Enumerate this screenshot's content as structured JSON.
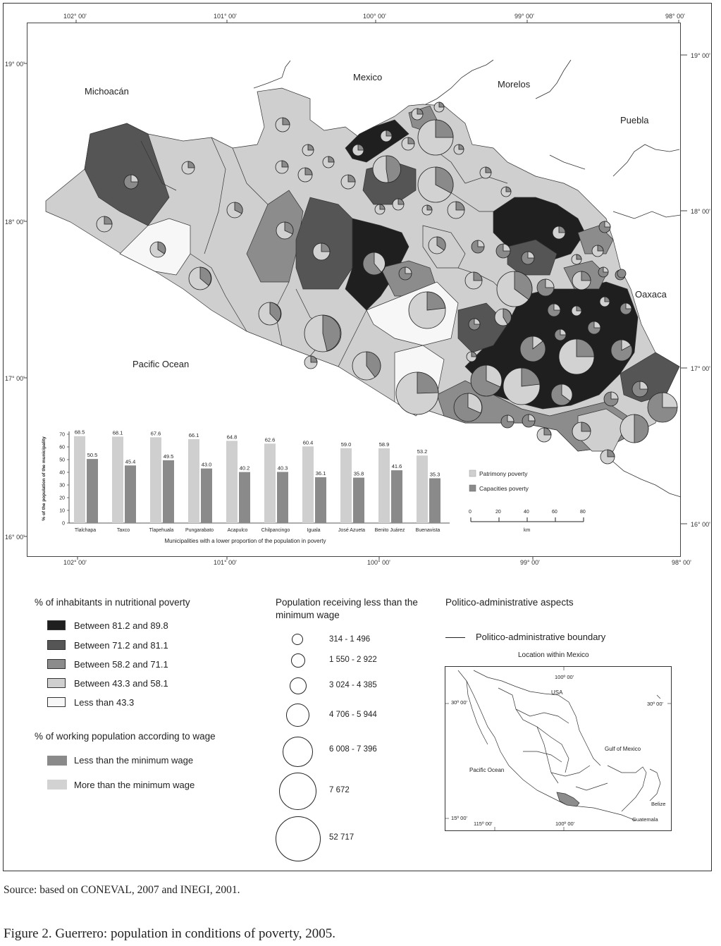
{
  "coords": {
    "top": [
      "102° 00'",
      "101° 00'",
      "100° 00'",
      "99° 00'",
      "98° 00'"
    ],
    "bottom": [
      "102° 00'",
      "101° 00'",
      "100° 00'",
      "99° 00'",
      "98° 00'"
    ],
    "left": [
      "19° 00'",
      "18° 00'",
      "17° 00'",
      "16° 00'"
    ],
    "right": [
      "19° 00'",
      "18° 00'",
      "17° 00'",
      "16° 00'"
    ]
  },
  "places": {
    "michoacan": "Michoacán",
    "mexico": "Mexico",
    "morelos": "Morelos",
    "puebla": "Puebla",
    "oaxaca": "Oaxaca",
    "pacific": "Pacific Ocean"
  },
  "chart_data": {
    "type": "bar",
    "categories": [
      "Tlalchapa",
      "Taxco",
      "Tlapehuala",
      "Pungarabato",
      "Acapulco",
      "Chilpancingo",
      "Iguala",
      "José Azueta",
      "Benito Juárez",
      "Buenavista"
    ],
    "series": [
      {
        "name": "Patrimony poverty",
        "values": [
          68.5,
          68.1,
          67.6,
          66.1,
          64.8,
          62.6,
          60.4,
          59.0,
          58.9,
          53.2
        ],
        "color": "#cfcfcf"
      },
      {
        "name": "Capacities poverty",
        "values": [
          50.5,
          45.4,
          49.5,
          43.0,
          40.2,
          40.3,
          36.1,
          35.8,
          41.6,
          35.3
        ],
        "color": "#8a8a8a"
      }
    ],
    "value_labels": [
      [
        "68.5",
        "68.1",
        "67.6",
        "66.1",
        "64.8",
        "62.6",
        "60.4",
        "59.0",
        "58.9",
        "53.2"
      ],
      [
        "50.5",
        "45.4",
        "49.5",
        "43.0",
        "40.2",
        "40.3",
        "36.1",
        "35.8",
        "41.6",
        "35.3"
      ]
    ],
    "ylabel": "% of the population of the municipality",
    "xlabel": "Municipalities with a lower proportion of the population in poverty",
    "ylim": [
      0,
      70
    ],
    "yticks": [
      "0",
      "10",
      "20",
      "30",
      "40",
      "50",
      "60",
      "70"
    ],
    "legend_position": "right"
  },
  "scale": {
    "ticks": [
      "0",
      "20",
      "40",
      "60",
      "80"
    ],
    "unit": "km"
  },
  "legend": {
    "nutritional": {
      "title": "% of inhabitants in nutritional poverty",
      "items": [
        {
          "label": "Between 81.2 and 89.8",
          "color": "#1f1f1f"
        },
        {
          "label": "Between 71.2 and 81.1",
          "color": "#555555"
        },
        {
          "label": "Between 58.2 and 71.1",
          "color": "#8c8c8c"
        },
        {
          "label": "Between 43.3 and 58.1",
          "color": "#cfcfcf"
        },
        {
          "label": "Less than 43.3",
          "color": "#f7f7f7"
        }
      ]
    },
    "wage": {
      "title": "% of working population according to wage",
      "items": [
        {
          "label": "Less than the minimum wage",
          "color": "#8a8a8a"
        },
        {
          "label": "More than the minimum wage",
          "color": "#d2d2d2"
        }
      ]
    },
    "population": {
      "title": "Population receiving less than the minimum wage",
      "items": [
        "314 - 1 496",
        "1 550 - 2 922",
        "3 024 - 4 385",
        "4 706 - 5 944",
        "6 008 - 7 396",
        "7 672",
        "52 717"
      ]
    },
    "political": {
      "title": "Politico-administrative aspects",
      "boundary": "Politico-administrative boundary"
    }
  },
  "inset": {
    "title": "Location within Mexico",
    "usa": "USA",
    "gulf": "Gulf of Mexico",
    "pacific": "Pacific Ocean",
    "belize": "Belize",
    "guatemala": "Guatemala",
    "lat30": "30º 00'",
    "lat15": "15º 00'",
    "lon115": "115º 00'",
    "lon100": "100º 00'"
  },
  "source": "Source:  based on CONEVAL, 2007 and INEGI, 2001.",
  "caption": "Figure 2. Guerrero: population in conditions of poverty, 2005."
}
